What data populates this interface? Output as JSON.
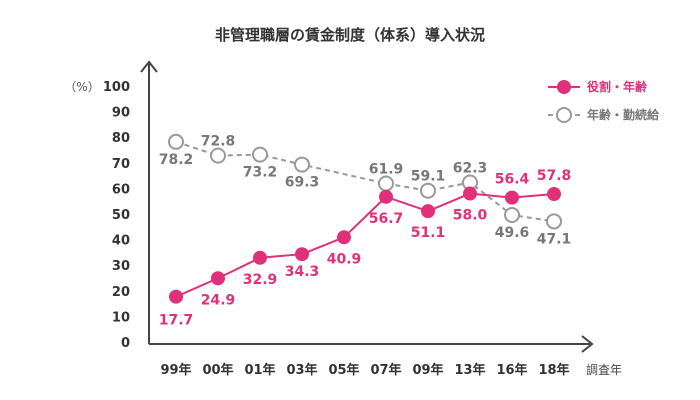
{
  "chart_data": {
    "type": "line",
    "title": "非管理職層の賃金制度（体系）導入状況",
    "ylabel": "（%）",
    "xlabel": "調査年",
    "ylim": [
      0,
      100
    ],
    "yticks": [
      "0",
      "10",
      "20",
      "30",
      "40",
      "50",
      "60",
      "70",
      "80",
      "90",
      "100"
    ],
    "categories": [
      "99年",
      "00年",
      "01年",
      "03年",
      "05年",
      "07年",
      "09年",
      "13年",
      "16年",
      "18年"
    ],
    "series": [
      {
        "name": "役割・年齢",
        "color": "#e0307a",
        "style": "solid",
        "marker": "filled",
        "values": [
          null,
          null,
          null,
          null,
          null,
          56.7,
          51.1,
          58.0,
          56.4,
          57.8
        ],
        "labels": [
          "",
          "",
          "",
          "",
          "",
          "56.7",
          "51.1",
          "58.0",
          "56.4",
          "57.8"
        ],
        "extra_values": [
          17.7,
          24.9,
          32.9,
          34.3,
          40.9
        ],
        "extra_labels": [
          "17.7",
          "24.9",
          "32.9",
          "34.3",
          "40.9"
        ]
      },
      {
        "name": "年齢・勤続給",
        "color": "#999999",
        "style": "dashed",
        "marker": "hollow",
        "values": [
          78.2,
          72.8,
          73.2,
          69.3,
          null,
          61.9,
          59.1,
          62.3,
          49.6,
          47.1
        ],
        "labels": [
          "78.2",
          "72.8",
          "73.2",
          "69.3",
          "",
          "61.9",
          "59.1",
          "62.3",
          "49.6",
          "47.1"
        ]
      }
    ]
  }
}
